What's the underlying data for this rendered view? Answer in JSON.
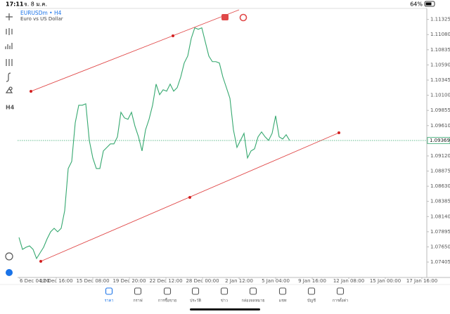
{
  "status_bar": {
    "time": "17:11",
    "date": "จ. 8 ม.ค.",
    "battery": "64%"
  },
  "chart_data": {
    "type": "line",
    "title": "EURUSDm • H4",
    "subtitle": "Euro vs US Dollar",
    "color": "#35a86f",
    "values": [
      1.07803,
      1.0761,
      1.07644,
      1.07666,
      1.0761,
      1.07462,
      1.07553,
      1.07644,
      1.0778,
      1.07894,
      1.0795,
      1.07894,
      1.0795,
      1.08235,
      1.08916,
      1.0903,
      1.09655,
      1.09939,
      1.09939,
      1.09962,
      1.09371,
      1.09087,
      1.08916,
      1.08916,
      1.092,
      1.09257,
      1.09314,
      1.09314,
      1.09428,
      1.09825,
      1.09734,
      1.09712,
      1.09825,
      1.09598,
      1.09428,
      1.092,
      1.09541,
      1.09712,
      1.09939,
      1.1028,
      1.10109,
      1.10189,
      1.10166,
      1.1028,
      1.10166,
      1.10223,
      1.10393,
      1.10621,
      1.10734,
      1.11018,
      1.11189,
      1.11166,
      1.11189,
      1.10961,
      1.10734,
      1.10643,
      1.10643,
      1.10621,
      1.10393,
      1.10223,
      1.10052,
      1.09541,
      1.09257,
      1.09371,
      1.09484,
      1.09087,
      1.092,
      1.09234,
      1.09428,
      1.09507,
      1.09428,
      1.09371,
      1.09484,
      1.09768,
      1.09428,
      1.09393,
      1.09462,
      1.09369
    ],
    "ylim": [
      1.0719,
      1.1148
    ],
    "yticks": [
      1.11325,
      {
        "value": 1.1108,
        "label": "1.11080"
      },
      1.10835,
      {
        "value": 1.1059,
        "label": "1.10590"
      },
      1.10345,
      {
        "value": 1.101,
        "label": "1.10100"
      },
      1.09855,
      {
        "value": 1.0961,
        "label": "1.09610"
      },
      {
        "value": 1.0912,
        "label": "1.09120"
      },
      1.08875,
      {
        "value": 1.0863,
        "label": "1.08630"
      },
      1.08385,
      {
        "value": 1.0814,
        "label": "1.08140"
      },
      1.07895,
      {
        "value": 1.0765,
        "label": "1.07650"
      },
      1.07405
    ],
    "time_labels": [
      "6 Dec 04:00",
      "12 Dec 16:00",
      "15 Dec 08:00",
      "19 Dec 20:00",
      "22 Dec 12:00",
      "28 Dec 00:00",
      "2 Jan 12:00",
      "5 Jan 04:00",
      "9 Jan 16:00",
      "12 Jan 08:00",
      "15 Jan 00:00",
      "17 Jan 16:00"
    ],
    "current_price": 1.09369,
    "grid": false
  },
  "tabs": [
    "ราคา",
    "กราฟ",
    "การซื้อขาย",
    "ประวัติ",
    "ข่าว",
    "กล่องจดหมาย",
    "แชท",
    "บัญชี",
    "การตั้งค่า"
  ]
}
